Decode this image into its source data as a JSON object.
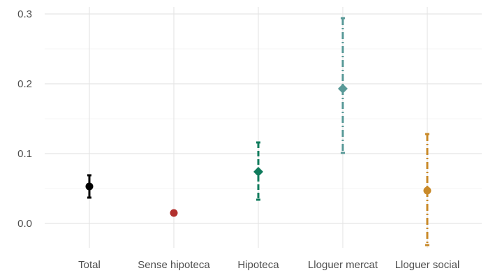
{
  "chart_data": {
    "type": "errorbar",
    "title": "",
    "xlabel": "",
    "ylabel": "",
    "ylim": [
      -0.035,
      0.31
    ],
    "yticks": [
      0.0,
      0.1,
      0.2,
      0.3
    ],
    "ytick_labels": [
      "0.0",
      "0.1",
      "0.2",
      "0.3"
    ],
    "grid": true,
    "legend": "none",
    "categories": [
      "Total",
      "Sense hipoteca",
      "Hipoteca",
      "Lloguer mercat",
      "Lloguer social"
    ],
    "series": [
      {
        "category": "Total",
        "value": 0.053,
        "lower": 0.037,
        "upper": 0.069,
        "color": "#000000",
        "linetype": "solid",
        "marker": "circle"
      },
      {
        "category": "Sense hipoteca",
        "value": 0.015,
        "lower": 0.013,
        "upper": 0.018,
        "color": "#b2302e",
        "linetype": "solid",
        "marker": "circle"
      },
      {
        "category": "Hipoteca",
        "value": 0.074,
        "lower": 0.034,
        "upper": 0.116,
        "color": "#0f7b5c",
        "linetype": "dashed",
        "marker": "diamond"
      },
      {
        "category": "Lloguer mercat",
        "value": 0.193,
        "lower": 0.101,
        "upper": 0.294,
        "color": "#5a9a98",
        "linetype": "dashdot",
        "marker": "diamond"
      },
      {
        "category": "Lloguer social",
        "value": 0.047,
        "lower": -0.031,
        "upper": 0.128,
        "color": "#c98a2a",
        "linetype": "dashdot",
        "marker": "circle"
      }
    ]
  }
}
